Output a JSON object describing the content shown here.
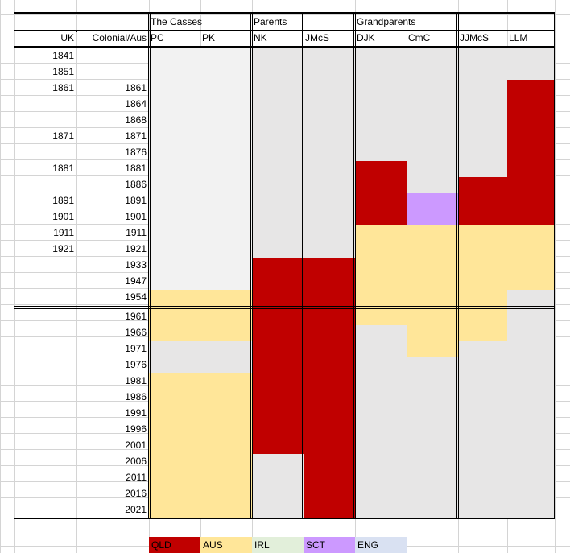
{
  "header": {
    "groups": [
      {
        "label": "The Casses",
        "col": 2
      },
      {
        "label": "Parents",
        "col": 4
      },
      {
        "label": "Grandparents",
        "col": 6
      }
    ],
    "row_label_uk": "UK",
    "row_label_colonial": "Colonial/Aus",
    "person_columns": [
      "PC",
      "PK",
      "NK",
      "JMcS",
      "DJK",
      "CmC",
      "JJMcS",
      "LLM"
    ]
  },
  "rows": [
    {
      "uk": "1841",
      "colonial": ""
    },
    {
      "uk": "1851",
      "colonial": ""
    },
    {
      "uk": "1861",
      "colonial": "1861"
    },
    {
      "uk": "",
      "colonial": "1864"
    },
    {
      "uk": "",
      "colonial": "1868"
    },
    {
      "uk": "1871",
      "colonial": "1871"
    },
    {
      "uk": "",
      "colonial": "1876"
    },
    {
      "uk": "1881",
      "colonial": "1881"
    },
    {
      "uk": "",
      "colonial": "1886"
    },
    {
      "uk": "1891",
      "colonial": "1891"
    },
    {
      "uk": "1901",
      "colonial": "1901"
    },
    {
      "uk": "1911",
      "colonial": "1911"
    },
    {
      "uk": "1921",
      "colonial": "1921"
    },
    {
      "uk": "",
      "colonial": "1933"
    },
    {
      "uk": "",
      "colonial": "1947"
    },
    {
      "uk": "",
      "colonial": "1954"
    },
    {
      "uk": "",
      "colonial": "1961"
    },
    {
      "uk": "",
      "colonial": "1966"
    },
    {
      "uk": "",
      "colonial": "1971"
    },
    {
      "uk": "",
      "colonial": "1976"
    },
    {
      "uk": "",
      "colonial": "1981"
    },
    {
      "uk": "",
      "colonial": "1986"
    },
    {
      "uk": "",
      "colonial": "1991"
    },
    {
      "uk": "",
      "colonial": "1996"
    },
    {
      "uk": "",
      "colonial": "2001"
    },
    {
      "uk": "",
      "colonial": "2006"
    },
    {
      "uk": "",
      "colonial": "2011"
    },
    {
      "uk": "",
      "colonial": "2016"
    },
    {
      "uk": "",
      "colonial": "2021"
    }
  ],
  "colors": {
    "QLD": "#c00000",
    "AUS": "#ffe699",
    "IRL": "#e2efda",
    "SCT": "#cc99ff",
    "ENG": "#d9e1f2",
    "unknown": "#e7e6e6",
    "unknown_light": "#f2f2f2"
  },
  "residence": [
    {
      "person": "PC",
      "spans": [
        {
          "from": "1841",
          "to": "1947",
          "place": "unknown_light"
        },
        {
          "from": "1954",
          "to": "1966",
          "place": "AUS"
        },
        {
          "from": "1971",
          "to": "1976",
          "place": "unknown"
        },
        {
          "from": "1981",
          "to": "2021",
          "place": "AUS"
        }
      ]
    },
    {
      "person": "PK",
      "spans": [
        {
          "from": "1841",
          "to": "1947",
          "place": "unknown_light"
        },
        {
          "from": "1954",
          "to": "1966",
          "place": "AUS"
        },
        {
          "from": "1971",
          "to": "1976",
          "place": "unknown"
        },
        {
          "from": "1981",
          "to": "2021",
          "place": "AUS"
        }
      ]
    },
    {
      "person": "NK",
      "spans": [
        {
          "from": "1841",
          "to": "1921",
          "place": "unknown"
        },
        {
          "from": "1933",
          "to": "2001",
          "place": "QLD"
        },
        {
          "from": "2006",
          "to": "2021",
          "place": "unknown"
        }
      ]
    },
    {
      "person": "JMcS",
      "spans": [
        {
          "from": "1841",
          "to": "1921",
          "place": "unknown"
        },
        {
          "from": "1933",
          "to": "2021",
          "place": "QLD"
        }
      ]
    },
    {
      "person": "DJK",
      "spans": [
        {
          "from": "1841",
          "to": "1876",
          "place": "unknown"
        },
        {
          "from": "1881",
          "to": "1901",
          "place": "QLD"
        },
        {
          "from": "1911",
          "to": "1961",
          "place": "AUS"
        },
        {
          "from": "1966",
          "to": "2021",
          "place": "unknown"
        }
      ]
    },
    {
      "person": "CmC",
      "spans": [
        {
          "from": "1841",
          "to": "1886",
          "place": "unknown"
        },
        {
          "from": "1891",
          "to": "1901",
          "place": "SCT"
        },
        {
          "from": "1911",
          "to": "1971",
          "place": "AUS"
        },
        {
          "from": "1976",
          "to": "2021",
          "place": "unknown"
        }
      ]
    },
    {
      "person": "JJMcS",
      "spans": [
        {
          "from": "1841",
          "to": "1881",
          "place": "unknown"
        },
        {
          "from": "1886",
          "to": "1901",
          "place": "QLD"
        },
        {
          "from": "1911",
          "to": "1966",
          "place": "AUS"
        },
        {
          "from": "1971",
          "to": "2021",
          "place": "unknown"
        }
      ]
    },
    {
      "person": "LLM",
      "spans": [
        {
          "from": "1841",
          "to": "1851",
          "place": "unknown"
        },
        {
          "from": "1861",
          "to": "1901",
          "place": "QLD"
        },
        {
          "from": "1911",
          "to": "1947",
          "place": "AUS"
        },
        {
          "from": "1954",
          "to": "2021",
          "place": "unknown"
        }
      ]
    }
  ],
  "legend": [
    {
      "label": "QLD",
      "key": "QLD"
    },
    {
      "label": "AUS",
      "key": "AUS"
    },
    {
      "label": "IRL",
      "key": "IRL"
    },
    {
      "label": "SCT",
      "key": "SCT"
    },
    {
      "label": "ENG",
      "key": "ENG"
    }
  ]
}
